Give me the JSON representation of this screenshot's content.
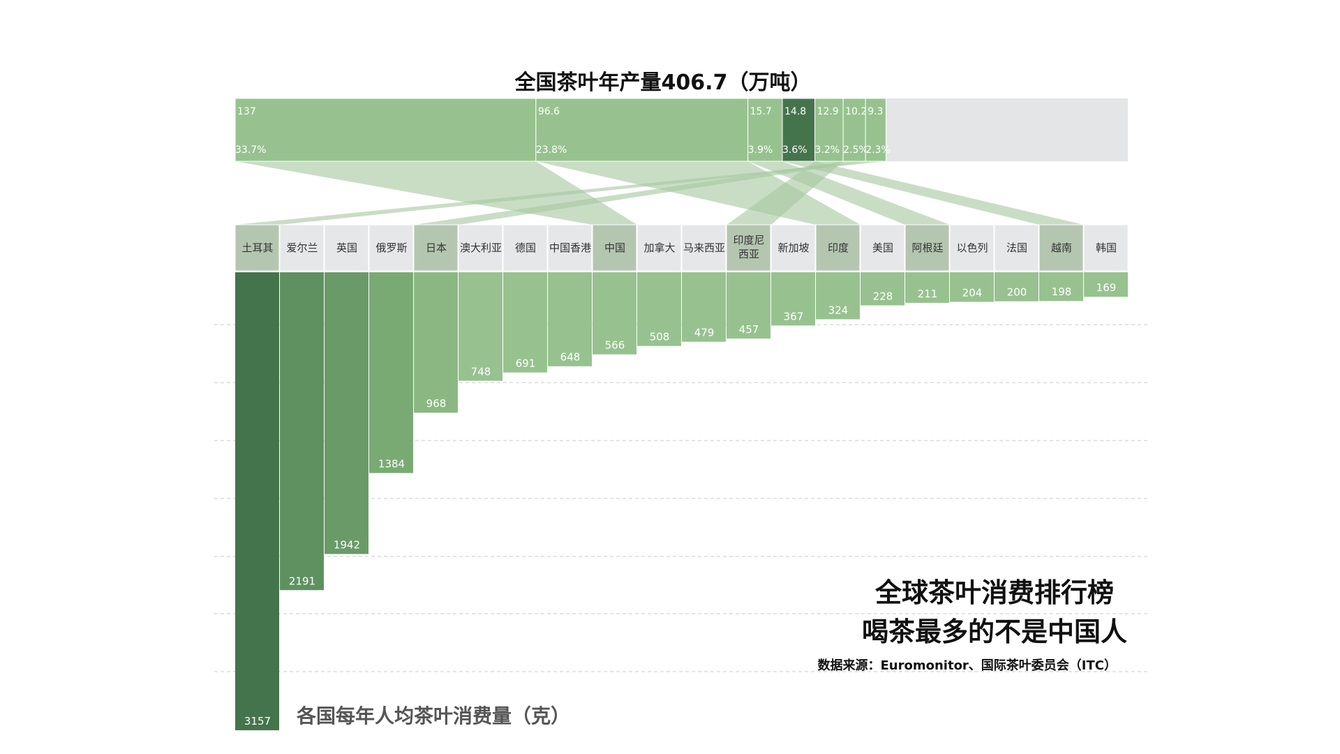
{
  "chart_data": [
    {
      "type": "bar",
      "title": "全国茶叶年产量406.7（万吨）",
      "orientation": "horizontal-stacked",
      "segments": [
        {
          "value": 137,
          "label": "137",
          "percent": "33.7%",
          "color": "#97c28f"
        },
        {
          "value": 96.6,
          "label": "96.6",
          "percent": "23.8%",
          "color": "#97c28f"
        },
        {
          "value": 15.7,
          "label": "15.7",
          "percent": "3.9%",
          "color": "#97c28f"
        },
        {
          "value": 14.8,
          "label": "14.8",
          "percent": "3.6%",
          "color": "#44744c"
        },
        {
          "value": 12.9,
          "label": "12.9",
          "percent": "3.2%",
          "color": "#97c28f"
        },
        {
          "value": 10.2,
          "label": "10.2",
          "percent": "2.5%",
          "color": "#97c28f"
        },
        {
          "value": 9.3,
          "label": "9.3",
          "percent": "2.3%",
          "color": "#97c28f"
        }
      ],
      "total": 406.7,
      "remainder_color": "#e4e5e7"
    },
    {
      "type": "bar",
      "title": "各国每年人均茶叶消费量（克）",
      "categories": [
        "土耳其",
        "爱尔兰",
        "英国",
        "俄罗斯",
        "日本",
        "澳大利亚",
        "德国",
        "中国香港",
        "中国",
        "加拿大",
        "马来西亚",
        "印度尼西亚",
        "新加坡",
        "印度",
        "美国",
        "阿根廷",
        "以色列",
        "法国",
        "越南",
        "韩国"
      ],
      "values": [
        3157,
        2191,
        1942,
        1384,
        968,
        748,
        691,
        648,
        566,
        508,
        479,
        457,
        367,
        324,
        228,
        211,
        204,
        200,
        198,
        169
      ],
      "producer_flags": [
        true,
        false,
        false,
        false,
        true,
        false,
        false,
        false,
        true,
        false,
        false,
        true,
        false,
        true,
        false,
        true,
        false,
        false,
        true,
        false
      ],
      "ylim": [
        0,
        3157
      ],
      "grid": true
    }
  ],
  "links": [
    {
      "segment": 0,
      "country": 8
    },
    {
      "segment": 1,
      "country": 13
    },
    {
      "segment": 2,
      "country": 15
    },
    {
      "segment": 3,
      "country": 18
    },
    {
      "segment": 4,
      "country": 11
    },
    {
      "segment": 5,
      "country": 4
    },
    {
      "segment": 6,
      "country": 0
    }
  ],
  "colors": {
    "header_producer": "#b4c6b0",
    "header_other": "#e6e7e9",
    "link": "#a8c8a2",
    "grid": "#c8c8c8",
    "bar_shades": [
      "#44744c",
      "#5f9160",
      "#6a9a68",
      "#7aaa74",
      "#8bb882",
      "#97c28f"
    ]
  },
  "headline": {
    "line1": "全球茶叶消费排行榜",
    "line2": "喝茶最多的不是中国人",
    "source": "数据来源：Euromonitor、国际茶叶委员会（ITC）"
  }
}
